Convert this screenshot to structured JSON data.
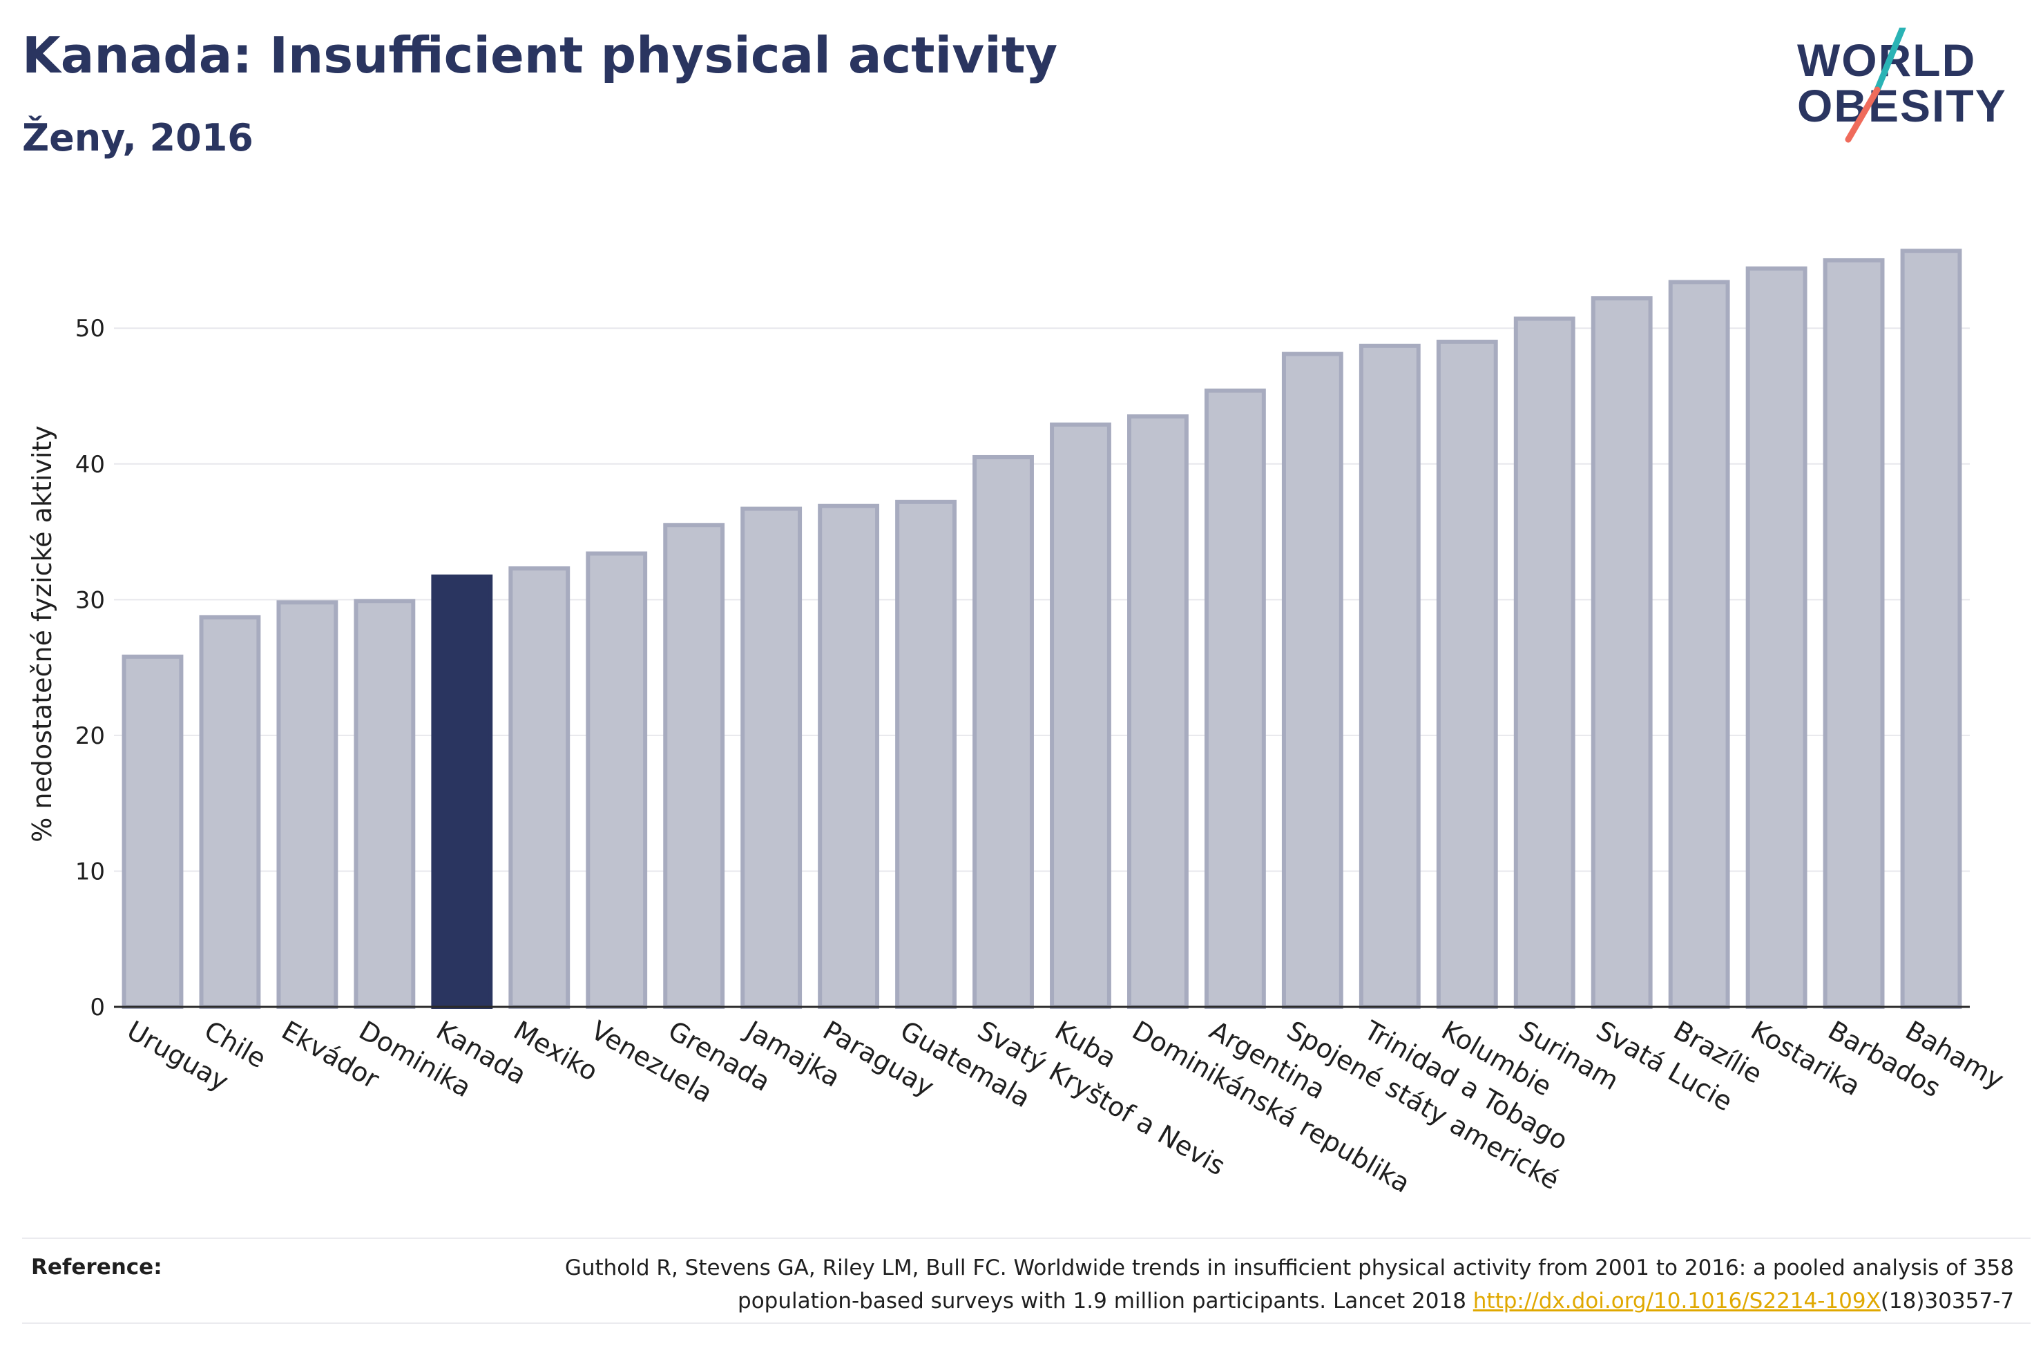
{
  "header": {
    "title": "Kanada: Insufficient physical activity",
    "subtitle": "Ženy, 2016"
  },
  "logo": {
    "line1": "WORLD",
    "line2": "OBESITY",
    "colors": {
      "text": "#2a3560",
      "slash_teal": "#2ab3b5",
      "slash_coral": "#ef6b5b"
    }
  },
  "colors": {
    "bar_default": "#bfc2cf",
    "bar_default_border": "#a7abbf",
    "bar_highlight": "#2a3560",
    "grid": "#e7e7ec",
    "axis": "#2a2a2a"
  },
  "chart_data": {
    "type": "bar",
    "title": "Kanada: Insufficient physical activity",
    "subtitle": "Ženy, 2016",
    "ylabel": "% nedostatečné fyzické aktivity",
    "xlabel": "",
    "ylim": [
      0,
      58
    ],
    "yticks": [
      0,
      10,
      20,
      30,
      40,
      50
    ],
    "grid": true,
    "highlight": "Kanada",
    "categories": [
      "Uruguay",
      "Chile",
      "Ekvádor",
      "Dominika",
      "Kanada",
      "Mexiko",
      "Venezuela",
      "Grenada",
      "Jamajka",
      "Paraguay",
      "Guatemala",
      "Svatý Kryštof a Nevis",
      "Kuba",
      "Dominikánská republika",
      "Argentina",
      "Spojené státy americké",
      "Trinidad a Tobago",
      "Kolumbie",
      "Surinam",
      "Svatá Lucie",
      "Brazílie",
      "Kostarika",
      "Barbados",
      "Bahamy"
    ],
    "values": [
      25.8,
      28.7,
      29.8,
      29.9,
      31.7,
      32.3,
      33.4,
      35.5,
      36.7,
      36.9,
      37.2,
      40.5,
      42.9,
      43.5,
      45.4,
      48.1,
      48.7,
      49.0,
      50.7,
      52.2,
      53.4,
      54.4,
      55.0,
      55.7
    ]
  },
  "footer": {
    "label": "Reference:",
    "citation_line1": "Guthold R, Stevens GA, Riley LM, Bull FC. Worldwide trends in insufficient physical activity from 2001 to 2016: a pooled analysis of 358",
    "citation_line2_pre": "population-based surveys with 1.9 million participants. Lancet 2018 ",
    "citation_link": "http://dx.doi.org/10.1016/S2214-109X",
    "citation_line2_post": "(18)30357-7"
  }
}
